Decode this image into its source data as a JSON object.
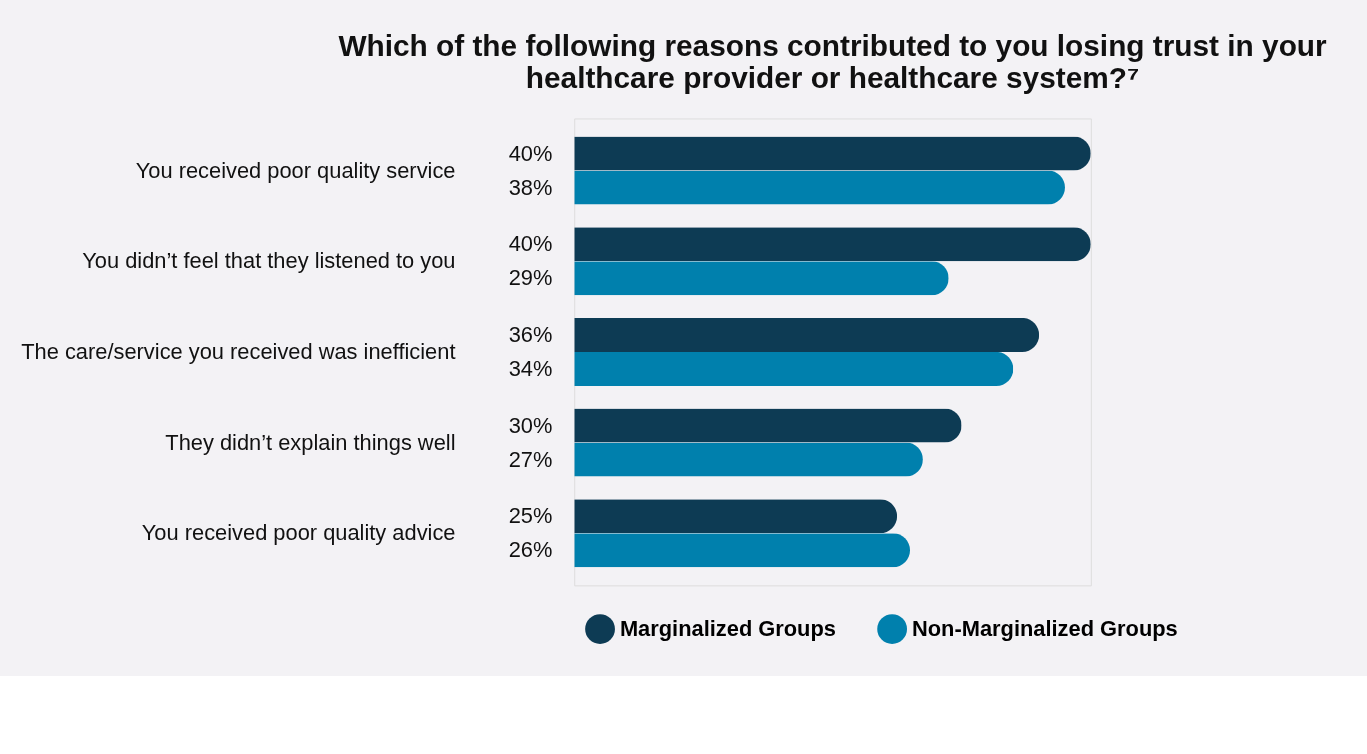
{
  "chart_data": {
    "type": "bar",
    "orientation": "horizontal",
    "title": "Which of the following reasons contributed to you losing trust in your healthcare provider or healthcare system?⁷",
    "categories": [
      "You received poor quality service",
      "You didn’t feel that they listened to you",
      "The care/service you received was inefficient",
      "They didn’t explain things well",
      "You received poor quality advice"
    ],
    "series": [
      {
        "name": "Marginalized Groups",
        "color": "#0d3b54",
        "values": [
          40,
          40,
          36,
          30,
          25
        ],
        "value_labels": [
          "40%",
          "40%",
          "36%",
          "30%",
          "25%"
        ]
      },
      {
        "name": "Non-Marginalized Groups",
        "color": "#0080ad",
        "values": [
          38,
          29,
          34,
          27,
          26
        ],
        "value_labels": [
          "38%",
          "29%",
          "34%",
          "27%",
          "26%"
        ]
      }
    ],
    "legend": "bottom"
  }
}
